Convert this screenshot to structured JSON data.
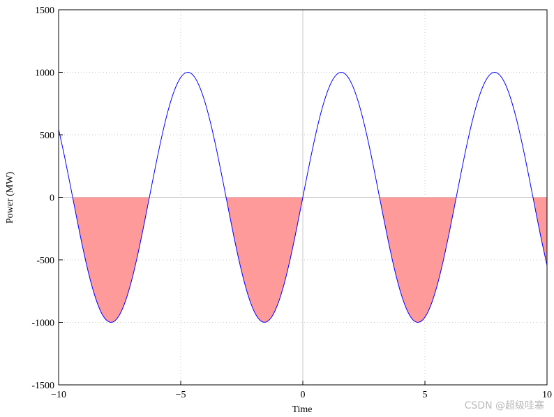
{
  "chart_data": {
    "type": "line",
    "xlabel": "Time",
    "ylabel": "Power (MW)",
    "x": [
      -10,
      -9.75,
      -9.5,
      -9.25,
      -9,
      -8.75,
      -8.5,
      -8.25,
      -8,
      -7.75,
      -7.5,
      -7.25,
      -7,
      -6.75,
      -6.5,
      -6.25,
      -6,
      -5.75,
      -5.5,
      -5.25,
      -5,
      -4.75,
      -4.5,
      -4.25,
      -4,
      -3.75,
      -3.5,
      -3.25,
      -3,
      -2.75,
      -2.5,
      -2.25,
      -2,
      -1.75,
      -1.5,
      -1.25,
      -1,
      -0.75,
      -0.5,
      -0.25,
      0,
      0.25,
      0.5,
      0.75,
      1,
      1.25,
      1.5,
      1.75,
      2,
      2.25,
      2.5,
      2.75,
      3,
      3.25,
      3.5,
      3.75,
      4,
      4.25,
      4.5,
      4.75,
      5,
      5.25,
      5.5,
      5.75,
      6,
      6.25,
      6.5,
      6.75,
      7,
      7.25,
      7.5,
      7.75,
      8,
      8.25,
      8.5,
      8.75,
      9,
      9.25,
      9.5,
      9.75,
      10
    ],
    "values": [
      544,
      320,
      75,
      -174,
      -412,
      -625,
      -798,
      -923,
      -989,
      -995,
      -938,
      -823,
      -657,
      -450,
      -215,
      33,
      279,
      508,
      706,
      859,
      959,
      999,
      978,
      895,
      757,
      572,
      351,
      108,
      -141,
      -382,
      -598,
      -778,
      -909,
      -984,
      -997,
      -949,
      -841,
      -682,
      -479,
      -247,
      0,
      247,
      479,
      682,
      841,
      949,
      997,
      984,
      909,
      778,
      598,
      382,
      141,
      -108,
      -351,
      -572,
      -757,
      -895,
      -978,
      -999,
      -959,
      -859,
      -706,
      -508,
      -279,
      -33,
      215,
      450,
      657,
      823,
      938,
      995,
      989,
      923,
      798,
      625,
      412,
      174,
      -75,
      -320,
      -544
    ],
    "color": "#0000ff",
    "fill_below_zero": "#ff9a9a",
    "xlim": [
      -10,
      10
    ],
    "xticks": [
      {
        "value": -10,
        "label": "−10"
      },
      {
        "value": -5,
        "label": "−5"
      },
      0,
      5,
      10
    ],
    "ylim": [
      -1500,
      1500
    ],
    "yticks": [
      -1500,
      -1000,
      -500,
      0,
      500,
      1000,
      1500
    ],
    "grid": true,
    "watermark": "CSDN @超级哇塞"
  }
}
